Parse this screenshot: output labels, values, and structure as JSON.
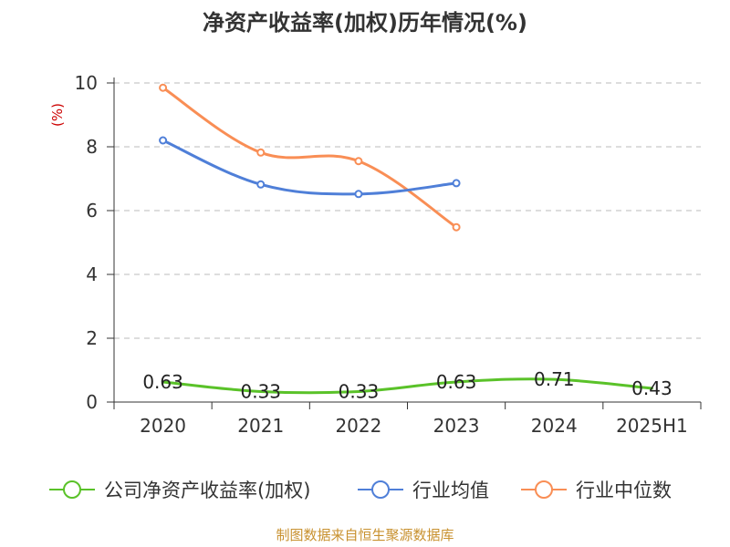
{
  "chart_data": {
    "type": "line",
    "title": "净资产收益率(加权)历年情况(%)",
    "ylabel": "(%)",
    "categories": [
      "2020",
      "2021",
      "2022",
      "2023",
      "2024",
      "2025H1"
    ],
    "ylim": [
      0,
      10
    ],
    "yticks": [
      "0",
      "2",
      "4",
      "6",
      "8",
      "10"
    ],
    "grid": true,
    "legend_position": "bottom",
    "series": [
      {
        "name": "公司净资产收益率(加权)",
        "color": "#5ac229",
        "values": [
          0.63,
          0.33,
          0.33,
          0.63,
          0.71,
          0.43
        ],
        "labels": [
          "0.63",
          "0.33",
          "0.33",
          "0.63",
          "0.71",
          "0.43"
        ]
      },
      {
        "name": "行业均值",
        "color": "#4f7fd8",
        "values": [
          8.2,
          6.82,
          6.52,
          6.86,
          null,
          null
        ]
      },
      {
        "name": "行业中位数",
        "color": "#f98e55",
        "values": [
          9.85,
          7.82,
          7.55,
          5.48,
          null,
          null
        ]
      }
    ]
  },
  "source": "制图数据来自恒生聚源数据库"
}
